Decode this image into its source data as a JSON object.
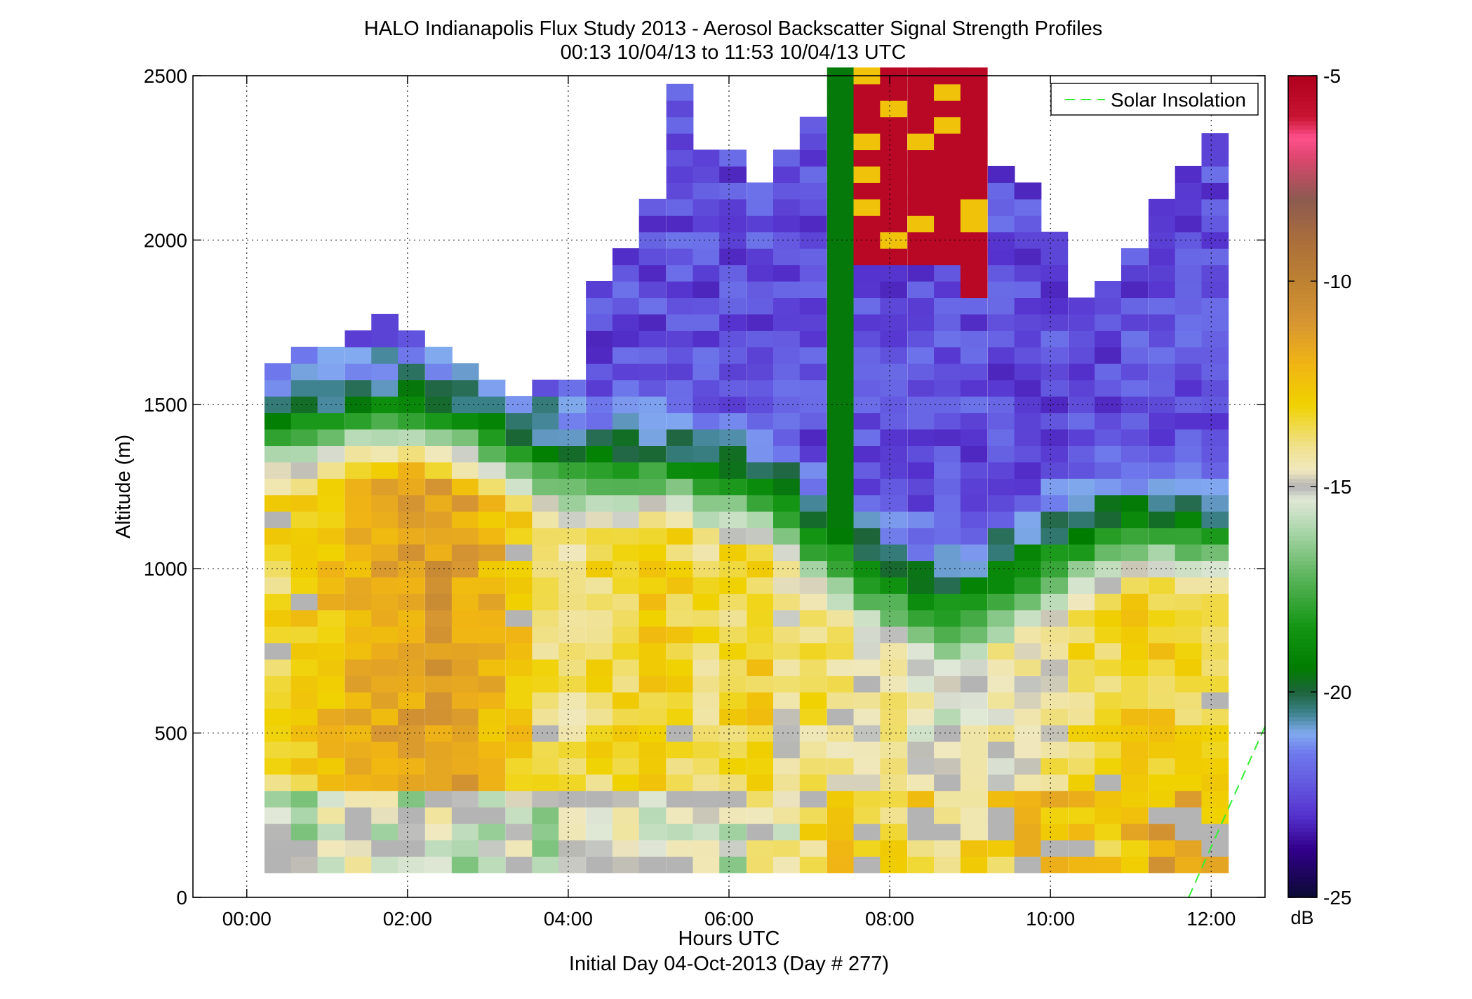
{
  "chart_data": {
    "type": "heatmap",
    "title": "HALO Indianapolis Flux Study 2013 - Aerosol Backscatter Signal Strength Profiles",
    "subtitle": "00:13 10/04/13 to 11:53 10/04/13  UTC",
    "xlabel": "Hours UTC",
    "xlabel2": "Initial Day 04-Oct-2013 (Day # 277)",
    "ylabel": "Altitude (m)",
    "xlim": [
      -0.67,
      12.67
    ],
    "ylim": [
      0,
      2500
    ],
    "x_ticks": [
      0,
      2,
      4,
      6,
      8,
      10,
      12
    ],
    "x_tick_labels": [
      "00:00",
      "02:00",
      "04:00",
      "06:00",
      "08:00",
      "10:00",
      "12:00"
    ],
    "y_ticks": [
      0,
      500,
      1000,
      1500,
      2000,
      2500
    ],
    "y_tick_labels": [
      "0",
      "500",
      "1000",
      "1500",
      "2000",
      "2500"
    ],
    "grid": true,
    "legend": {
      "placement": "top-right",
      "entries": [
        "Solar Insolation"
      ]
    },
    "colorbar": {
      "unit": "dB",
      "range": [
        -25,
        -5
      ],
      "ticks": [
        -25,
        -20,
        -15,
        -10,
        -5
      ],
      "tick_labels": [
        "-25",
        "-20",
        "-15",
        "-10",
        "-5"
      ]
    },
    "time_resolution_hours": 0.333,
    "altitude_resolution_m": 50,
    "profile_start_hours": 0.22,
    "profile_end_hours": 11.88,
    "series": [
      {
        "name": "Solar Insolation",
        "style": "dashed",
        "color": "#33ee33",
        "x": [
          11.72,
          12.67
        ],
        "y": [
          0,
          520
        ]
      }
    ],
    "profiles": [
      {
        "t": 0.22,
        "top": 1600,
        "ml": 1450,
        "bot": -15.6,
        "mid": -13.4
      },
      {
        "t": 0.55,
        "top": 1650,
        "ml": 1460,
        "bot": -15.8,
        "mid": -13.0
      },
      {
        "t": 0.88,
        "top": 1650,
        "ml": 1470,
        "bot": -15.2,
        "mid": -12.4
      },
      {
        "t": 1.22,
        "top": 1700,
        "ml": 1490,
        "bot": -15.0,
        "mid": -11.8
      },
      {
        "t": 1.55,
        "top": 1750,
        "ml": 1500,
        "bot": -15.4,
        "mid": -11.6
      },
      {
        "t": 1.88,
        "top": 1700,
        "ml": 1490,
        "bot": -15.6,
        "mid": -11.4
      },
      {
        "t": 2.22,
        "top": 1650,
        "ml": 1470,
        "bot": -15.2,
        "mid": -11.2
      },
      {
        "t": 2.55,
        "top": 1600,
        "ml": 1450,
        "bot": -15.6,
        "mid": -11.6
      },
      {
        "t": 2.88,
        "top": 1550,
        "ml": 1420,
        "bot": -15.8,
        "mid": -12.0
      },
      {
        "t": 3.22,
        "top": 1500,
        "ml": 1380,
        "bot": -15.4,
        "mid": -12.6
      },
      {
        "t": 3.55,
        "top": 1550,
        "ml": 1360,
        "bot": -15.8,
        "mid": -13.6
      },
      {
        "t": 3.88,
        "top": 1550,
        "ml": 1340,
        "bot": -15.6,
        "mid": -13.8
      },
      {
        "t": 4.22,
        "top": 1850,
        "ml": 1320,
        "bot": -15.0,
        "mid": -13.4
      },
      {
        "t": 4.55,
        "top": 1950,
        "ml": 1320,
        "bot": -15.2,
        "mid": -13.2
      },
      {
        "t": 4.88,
        "top": 2100,
        "ml": 1330,
        "bot": -15.4,
        "mid": -12.8
      },
      {
        "t": 5.22,
        "top": 2450,
        "ml": 1320,
        "bot": -15.0,
        "mid": -13.2
      },
      {
        "t": 5.55,
        "top": 2250,
        "ml": 1300,
        "bot": -15.4,
        "mid": -13.6
      },
      {
        "t": 5.88,
        "top": 2250,
        "ml": 1280,
        "bot": -15.6,
        "mid": -13.4
      },
      {
        "t": 6.22,
        "top": 2150,
        "ml": 1260,
        "bot": -14.8,
        "mid": -13.0
      },
      {
        "t": 6.55,
        "top": 2250,
        "ml": 1220,
        "bot": -14.6,
        "mid": -14.4
      },
      {
        "t": 6.88,
        "top": 2350,
        "ml": 1120,
        "bot": -13.4,
        "mid": -13.8
      },
      {
        "t": 7.22,
        "top": 2500,
        "ml": 1080,
        "bot": -13.0,
        "mid": -14.2
      },
      {
        "t": 7.55,
        "top": 2500,
        "ml": 1000,
        "bot": -12.6,
        "mid": -14.6
      },
      {
        "t": 7.88,
        "top": 2500,
        "ml": 960,
        "bot": -13.0,
        "mid": -14.0
      },
      {
        "t": 8.22,
        "top": 2500,
        "ml": 940,
        "bot": -13.2,
        "mid": -14.8
      },
      {
        "t": 8.55,
        "top": 2500,
        "ml": 920,
        "bot": -13.6,
        "mid": -15.2
      },
      {
        "t": 8.88,
        "top": 2500,
        "ml": 940,
        "bot": -13.4,
        "mid": -14.8
      },
      {
        "t": 9.22,
        "top": 2200,
        "ml": 980,
        "bot": -13.0,
        "mid": -14.6
      },
      {
        "t": 9.55,
        "top": 2150,
        "ml": 1020,
        "bot": -12.6,
        "mid": -14.4
      },
      {
        "t": 9.88,
        "top": 2000,
        "ml": 1060,
        "bot": -12.4,
        "mid": -14.2
      },
      {
        "t": 10.22,
        "top": 1800,
        "ml": 1100,
        "bot": -12.8,
        "mid": -13.6
      },
      {
        "t": 10.55,
        "top": 1850,
        "ml": 1120,
        "bot": -12.6,
        "mid": -13.2
      },
      {
        "t": 10.88,
        "top": 1950,
        "ml": 1140,
        "bot": -12.4,
        "mid": -12.8
      },
      {
        "t": 11.22,
        "top": 2100,
        "ml": 1140,
        "bot": -11.8,
        "mid": -13.0
      },
      {
        "t": 11.55,
        "top": 2200,
        "ml": 1130,
        "bot": -11.6,
        "mid": -13.2
      },
      {
        "t": 11.88,
        "top": 2300,
        "ml": 1120,
        "bot": -12.0,
        "mid": -13.4
      }
    ],
    "annotations": [
      "Cloud returns ~ -5 dB between 07:30 and 09:00 above 1800 m",
      "Strong green column (~ -19 dB) near 07:20 from 1100 m to 2500 m"
    ]
  }
}
